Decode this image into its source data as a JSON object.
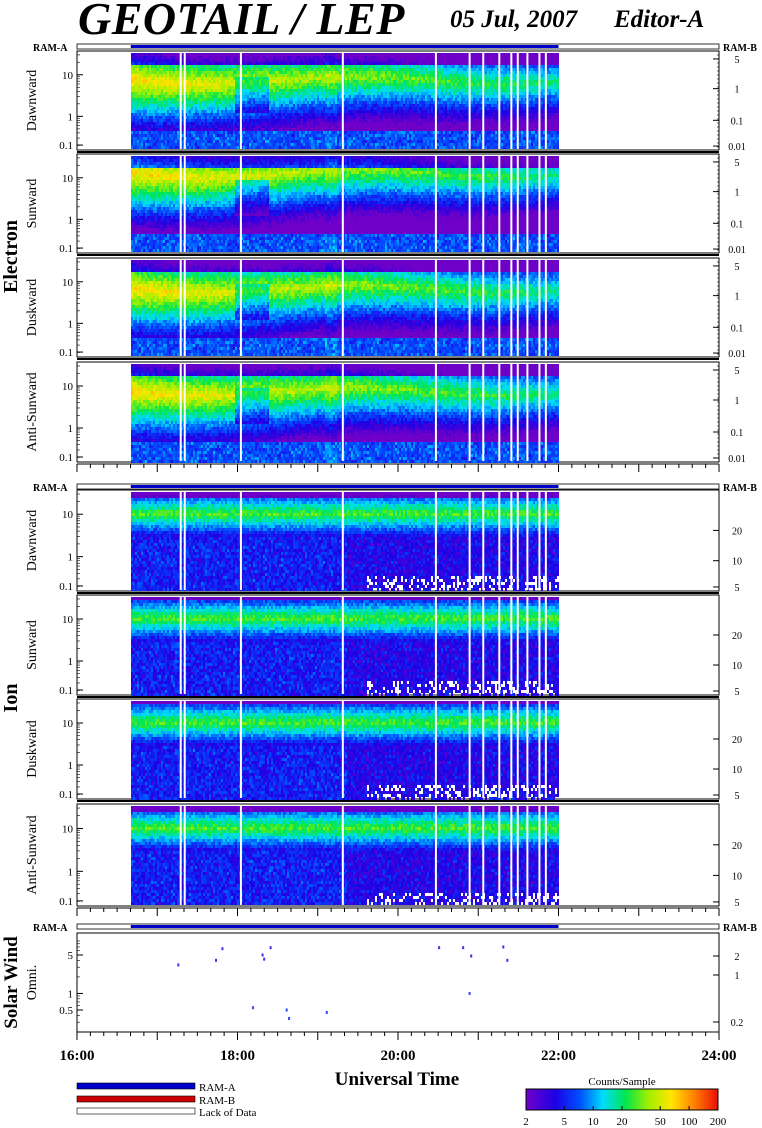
{
  "header": {
    "title": "GEOTAIL / LEP",
    "date": "05 Jul, 2007",
    "editor": "Editor-A"
  },
  "ram_labels": {
    "left": "RAM-A",
    "right": "RAM-B"
  },
  "x_axis": {
    "label": "Universal Time",
    "ticks": [
      "16:00",
      "18:00",
      "20:00",
      "22:00",
      "24:00"
    ],
    "range_hours": [
      16,
      24
    ],
    "data_coverage_hours": [
      16.67,
      22.0
    ]
  },
  "groups": [
    {
      "name": "Electron",
      "panels": [
        {
          "name": "Dawnward",
          "left_ticks": [
            "10",
            "1",
            "0.1"
          ],
          "right_ticks": [
            "5",
            "1",
            "0.1",
            "0.01"
          ]
        },
        {
          "name": "Sunward",
          "left_ticks": [
            "10",
            "1",
            "0.1"
          ],
          "right_ticks": [
            "5",
            "1",
            "0.1",
            "0.01"
          ]
        },
        {
          "name": "Duskward",
          "left_ticks": [
            "10",
            "1",
            "0.1"
          ],
          "right_ticks": [
            "5",
            "1",
            "0.1",
            "0.01"
          ]
        },
        {
          "name": "Anti-Sunward",
          "left_ticks": [
            "10",
            "1",
            "0.1"
          ],
          "right_ticks": [
            "5",
            "1",
            "0.1",
            "0.01"
          ]
        }
      ]
    },
    {
      "name": "Ion",
      "panels": [
        {
          "name": "Dawnward",
          "left_ticks": [
            "10",
            "1",
            "0.1"
          ],
          "right_ticks": [
            "20",
            "10",
            "5"
          ]
        },
        {
          "name": "Sunward",
          "left_ticks": [
            "10",
            "1",
            "0.1"
          ],
          "right_ticks": [
            "20",
            "10",
            "5"
          ]
        },
        {
          "name": "Duskward",
          "left_ticks": [
            "10",
            "1",
            "0.1"
          ],
          "right_ticks": [
            "20",
            "10",
            "5"
          ]
        },
        {
          "name": "Anti-Sunward",
          "left_ticks": [
            "10",
            "1",
            "0.1"
          ],
          "right_ticks": [
            "20",
            "10",
            "5"
          ]
        }
      ]
    }
  ],
  "solar_wind": {
    "group": "Solar Wind",
    "panel": "Omni.",
    "left_ticks": [
      "5",
      "1",
      "0.5"
    ],
    "right_ticks": [
      "2",
      "1",
      "0.2"
    ]
  },
  "legend": {
    "ram_a": "RAM-A",
    "ram_b": "RAM-B",
    "lack": "Lack of Data",
    "colors": {
      "ram_a": "#0000cc",
      "ram_b": "#cc0000"
    }
  },
  "colorbar": {
    "title": "Counts/Sample",
    "ticks": [
      "2",
      "5",
      "10",
      "20",
      "50",
      "100",
      "200"
    ]
  },
  "chart_data": {
    "type": "heatmap",
    "title": "GEOTAIL / LEP",
    "xlabel": "Universal Time",
    "x_range": [
      16,
      24
    ],
    "data_start": 16.67,
    "data_end": 22.0,
    "gaps": [
      17.28,
      17.33,
      18.03,
      19.3,
      20.46,
      20.88,
      21.05,
      21.25,
      21.4,
      21.48,
      21.6,
      21.75,
      21.83
    ],
    "solar_wind_points": [
      {
        "x": 17.25,
        "y": 3.3
      },
      {
        "x": 17.72,
        "y": 4.0
      },
      {
        "x": 17.8,
        "y": 6.5
      },
      {
        "x": 18.18,
        "y": 0.55
      },
      {
        "x": 18.3,
        "y": 5.0
      },
      {
        "x": 18.32,
        "y": 4.2
      },
      {
        "x": 18.4,
        "y": 6.8
      },
      {
        "x": 18.6,
        "y": 0.5
      },
      {
        "x": 18.63,
        "y": 0.35
      },
      {
        "x": 19.1,
        "y": 0.45
      },
      {
        "x": 20.5,
        "y": 6.8
      },
      {
        "x": 20.8,
        "y": 6.8
      },
      {
        "x": 20.9,
        "y": 4.8
      },
      {
        "x": 20.88,
        "y": 1.0
      },
      {
        "x": 21.35,
        "y": 4.0
      },
      {
        "x": 21.3,
        "y": 7.0
      }
    ],
    "colorbar_range": [
      2,
      200
    ]
  }
}
